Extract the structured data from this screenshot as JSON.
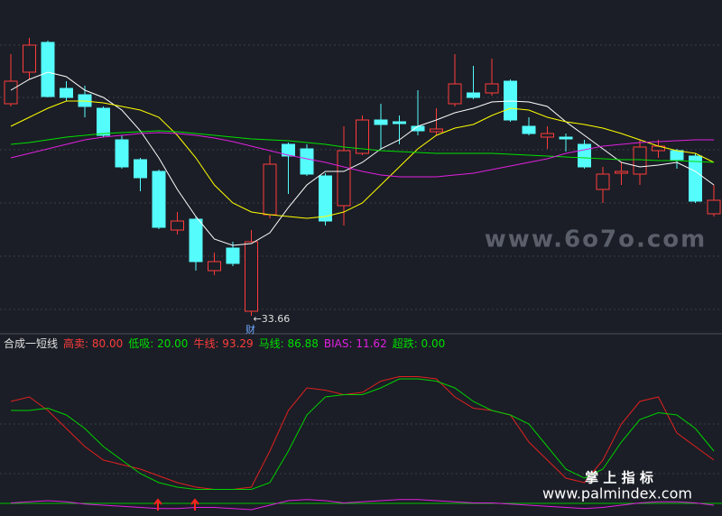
{
  "chart_data": [
    {
      "type": "candlestick",
      "open": [
        38.36,
        39.06,
        39.72,
        38.7,
        38.56,
        38.26,
        37.56,
        37.12,
        36.86,
        35.56,
        35.8,
        34.66,
        35.16,
        33.76,
        35.9,
        37.46,
        37.36,
        36.76,
        36.1,
        37.26,
        38.0,
        37.96,
        37.86,
        37.74,
        38.36,
        38.6,
        38.6,
        38.86,
        37.86,
        37.62,
        37.62,
        37.46,
        36.46,
        36.82,
        36.8,
        37.32,
        37.32,
        37.2,
        35.92
      ],
      "high": [
        39.46,
        39.82,
        39.76,
        38.86,
        38.76,
        38.3,
        37.66,
        37.16,
        36.9,
        35.96,
        35.86,
        35.06,
        35.3,
        35.56,
        37.22,
        37.5,
        37.46,
        36.82,
        37.86,
        38.1,
        38.36,
        38.1,
        38.66,
        38.26,
        39.46,
        39.2,
        39.36,
        38.9,
        38.06,
        37.86,
        37.7,
        37.56,
        36.96,
        37.06,
        37.56,
        37.56,
        37.36,
        37.26,
        36.56
      ],
      "low": [
        38.3,
        38.9,
        38.5,
        38.42,
        38.06,
        37.62,
        36.92,
        36.42,
        35.58,
        35.46,
        34.66,
        34.56,
        34.76,
        33.66,
        35.82,
        36.36,
        36.76,
        35.66,
        35.66,
        37.22,
        37.36,
        37.46,
        37.66,
        37.66,
        38.3,
        38.46,
        38.54,
        37.96,
        37.66,
        37.36,
        37.3,
        36.92,
        36.16,
        36.56,
        36.56,
        37.16,
        36.92,
        36.16,
        35.86
      ],
      "close": [
        38.86,
        39.66,
        38.52,
        38.5,
        38.3,
        37.66,
        36.96,
        36.72,
        35.62,
        35.76,
        34.86,
        34.86,
        34.82,
        35.3,
        37.02,
        37.2,
        36.8,
        35.76,
        37.32,
        38.0,
        37.9,
        37.92,
        37.76,
        37.8,
        38.8,
        38.5,
        38.8,
        38.0,
        37.7,
        37.7,
        37.58,
        36.96,
        36.8,
        36.86,
        37.4,
        37.42,
        37.12,
        36.2,
        36.22
      ],
      "up_color": "#ff3c3c",
      "down_color": "#54fcfc",
      "ylim": [
        33.36,
        40.66
      ],
      "series": [
        {
          "color": "#ffffff",
          "values": [
            38.66,
            38.9,
            39.06,
            38.96,
            38.66,
            38.5,
            38.22,
            37.76,
            37.16,
            36.46,
            35.86,
            35.36,
            35.22,
            35.26,
            35.5,
            36.06,
            36.56,
            36.86,
            36.86,
            37.06,
            37.36,
            37.56,
            37.86,
            38.0,
            38.16,
            38.26,
            38.4,
            38.42,
            38.4,
            38.3,
            37.96,
            37.66,
            37.36,
            37.06,
            36.96,
            37.0,
            37.06,
            36.86,
            36.56
          ]
        },
        {
          "color": "#ffff00",
          "values": [
            37.86,
            38.06,
            38.26,
            38.42,
            38.42,
            38.38,
            38.3,
            38.22,
            38.06,
            37.66,
            37.16,
            36.56,
            36.16,
            35.96,
            35.9,
            35.86,
            35.82,
            35.86,
            35.96,
            36.16,
            36.56,
            36.96,
            37.36,
            37.66,
            37.82,
            37.9,
            38.1,
            38.26,
            38.22,
            38.06,
            37.96,
            37.9,
            37.82,
            37.7,
            37.56,
            37.42,
            37.32,
            37.26,
            37.06
          ]
        },
        {
          "color": "#00e000",
          "values": [
            37.46,
            37.5,
            37.56,
            37.62,
            37.66,
            37.7,
            37.72,
            37.74,
            37.76,
            37.74,
            37.7,
            37.66,
            37.62,
            37.58,
            37.56,
            37.54,
            37.5,
            37.46,
            37.4,
            37.36,
            37.32,
            37.3,
            37.28,
            37.26,
            37.26,
            37.26,
            37.26,
            37.24,
            37.22,
            37.2,
            37.18,
            37.16,
            37.14,
            37.12,
            37.12,
            37.1,
            37.1,
            37.08,
            37.06
          ]
        },
        {
          "color": "#e020e0",
          "values": [
            37.16,
            37.26,
            37.36,
            37.46,
            37.56,
            37.62,
            37.66,
            37.7,
            37.72,
            37.7,
            37.66,
            37.6,
            37.52,
            37.42,
            37.32,
            37.22,
            37.14,
            37.06,
            36.96,
            36.86,
            36.78,
            36.74,
            36.74,
            36.74,
            36.78,
            36.82,
            36.9,
            36.98,
            37.06,
            37.14,
            37.26,
            37.34,
            37.42,
            37.46,
            37.5,
            37.52,
            37.54,
            37.56,
            37.56
          ]
        }
      ],
      "low_annotation": "←33.66",
      "marker": "财",
      "watermark": "www.6o7o.com"
    },
    {
      "type": "line",
      "legend": [
        {
          "text": "合成一短线",
          "color": "#e0e0e0"
        },
        {
          "text": "高卖: 80.00",
          "color": "#ff3c3c"
        },
        {
          "text": "低吸: 20.00",
          "color": "#00e000"
        },
        {
          "text": "牛线: 93.29",
          "color": "#ff3c3c"
        },
        {
          "text": "马线: 86.88",
          "color": "#00e000"
        },
        {
          "text": "BIAS: 11.62",
          "color": "#e020e0"
        },
        {
          "text": "超跌: 0.00",
          "color": "#00e000"
        }
      ],
      "ylim": [
        -20,
        104
      ],
      "series": [
        {
          "color": "#e02020",
          "values": [
            80,
            84,
            72,
            56,
            40,
            28,
            24,
            20,
            14,
            8,
            4,
            2,
            2,
            4,
            36,
            72,
            92,
            90,
            86,
            88,
            98,
            102,
            102,
            100,
            84,
            74,
            72,
            68,
            44,
            28,
            12,
            8,
            28,
            60,
            80,
            84,
            52,
            40,
            28
          ]
        },
        {
          "color": "#00d000",
          "values": [
            72,
            72,
            74,
            68,
            56,
            40,
            28,
            16,
            8,
            4,
            2,
            2,
            2,
            2,
            8,
            36,
            68,
            84,
            86,
            86,
            92,
            100,
            100,
            98,
            92,
            80,
            72,
            68,
            60,
            40,
            20,
            12,
            20,
            44,
            64,
            70,
            68,
            56,
            36
          ]
        },
        {
          "color": "#e020e0",
          "values": [
            -10,
            -9,
            -8,
            -9,
            -11,
            -12,
            -13,
            -14,
            -15,
            -15,
            -14,
            -14,
            -15,
            -16,
            -12,
            -8,
            -7,
            -8,
            -10,
            -9,
            -8,
            -7,
            -7,
            -8,
            -9,
            -10,
            -10,
            -11,
            -12,
            -13,
            -14,
            -15,
            -14,
            -12,
            -10,
            -9,
            -9,
            -10,
            -12
          ]
        }
      ]
    }
  ],
  "footer": {
    "title": "掌 上 指 标",
    "url": "www.palmindex.com"
  }
}
